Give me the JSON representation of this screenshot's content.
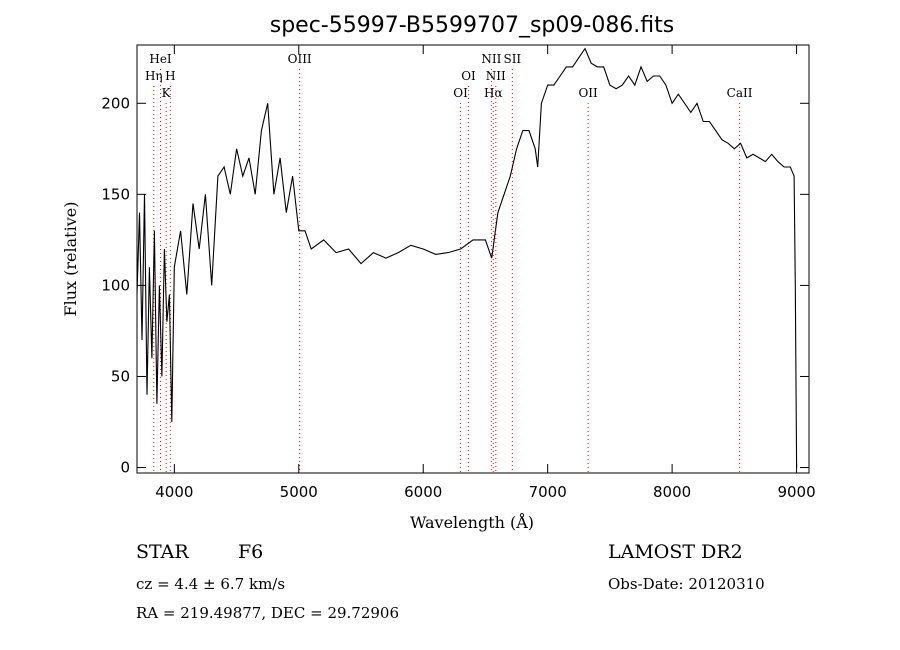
{
  "chart_data": {
    "type": "line",
    "title": "spec-55997-B5599707_sp09-086.fits",
    "xlabel": "Wavelength (Å)",
    "ylabel": "Flux (relative)",
    "xlim": [
      3700,
      9100
    ],
    "ylim": [
      -3,
      232
    ],
    "x_ticks": [
      4000,
      5000,
      6000,
      7000,
      8000,
      9000
    ],
    "y_ticks": [
      0,
      50,
      100,
      150,
      200
    ],
    "grid": false,
    "line_color": "#000000",
    "marker_color": "#ff0000",
    "series": [
      {
        "x": [
          3700,
          3720,
          3740,
          3760,
          3780,
          3800,
          3820,
          3840,
          3860,
          3880,
          3900,
          3920,
          3940,
          3960,
          3980,
          4000,
          4050,
          4100,
          4150,
          4200,
          4250,
          4300,
          4350,
          4400,
          4450,
          4500,
          4550,
          4600,
          4650,
          4700,
          4750,
          4800,
          4850,
          4900,
          4950,
          5000,
          5050,
          5100,
          5200,
          5300,
          5400,
          5500,
          5600,
          5700,
          5800,
          5900,
          6000,
          6100,
          6200,
          6300,
          6400,
          6500,
          6550,
          6580,
          6600,
          6650,
          6700,
          6750,
          6800,
          6850,
          6900,
          6920,
          6950,
          7000,
          7050,
          7100,
          7150,
          7200,
          7250,
          7300,
          7350,
          7400,
          7450,
          7500,
          7550,
          7600,
          7650,
          7700,
          7750,
          7800,
          7850,
          7900,
          7950,
          8000,
          8050,
          8100,
          8150,
          8200,
          8250,
          8300,
          8350,
          8400,
          8450,
          8500,
          8550,
          8600,
          8650,
          8700,
          8750,
          8800,
          8850,
          8900,
          8950,
          8980,
          8990,
          9000
        ],
        "y": [
          95,
          140,
          70,
          150,
          40,
          110,
          60,
          130,
          35,
          100,
          50,
          120,
          80,
          95,
          25,
          110,
          130,
          95,
          145,
          120,
          150,
          100,
          160,
          165,
          150,
          175,
          160,
          170,
          150,
          185,
          200,
          150,
          170,
          140,
          160,
          130,
          130,
          120,
          125,
          118,
          120,
          112,
          118,
          115,
          118,
          122,
          120,
          117,
          118,
          120,
          125,
          125,
          115,
          130,
          140,
          150,
          160,
          175,
          185,
          185,
          175,
          165,
          200,
          210,
          210,
          215,
          220,
          220,
          225,
          230,
          222,
          220,
          220,
          210,
          208,
          210,
          215,
          210,
          220,
          212,
          215,
          215,
          210,
          200,
          205,
          200,
          195,
          200,
          190,
          190,
          185,
          180,
          178,
          175,
          178,
          170,
          172,
          170,
          168,
          172,
          168,
          165,
          165,
          160,
          100,
          0
        ]
      }
    ],
    "line_markers": [
      {
        "label": "HeI",
        "x": 3889,
        "row": 0
      },
      {
        "label": "Hη",
        "x": 3835,
        "row": 1
      },
      {
        "label": "H",
        "x": 3968,
        "row": 1
      },
      {
        "label": "K",
        "x": 3934,
        "row": 2
      },
      {
        "label": "OIII",
        "x": 5007,
        "row": 0
      },
      {
        "label": "OI",
        "x": 6300,
        "row": 2
      },
      {
        "label": "OI",
        "x": 6364,
        "row": 1
      },
      {
        "label": "NII",
        "x": 6548,
        "row": 0
      },
      {
        "label": "NII",
        "x": 6583,
        "row": 1
      },
      {
        "label": "Hα",
        "x": 6563,
        "row": 2
      },
      {
        "label": "SII",
        "x": 6716,
        "row": 0
      },
      {
        "label": "OII",
        "x": 7325,
        "row": 2
      },
      {
        "label": "CaII",
        "x": 8542,
        "row": 2
      }
    ]
  },
  "info": {
    "object_class": "STAR",
    "subclass": "F6",
    "survey": "LAMOST DR2",
    "cz": "cz = 4.4 ± 6.7 km/s",
    "obs_date": "Obs-Date: 20120310",
    "coords": "RA = 219.49877, DEC =  29.72906"
  }
}
